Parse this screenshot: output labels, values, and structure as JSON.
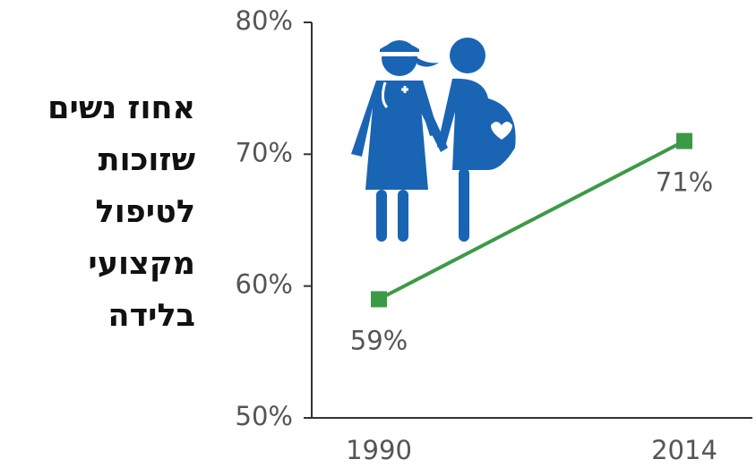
{
  "chart_data": {
    "type": "line",
    "title_lines": [
      "אחוז נשים",
      "שזוכות",
      "לטיפול",
      "מקצועי",
      "בלידה"
    ],
    "categories": [
      "1990",
      "2014"
    ],
    "series": [
      {
        "name": null,
        "color": "#3c9a47",
        "values": [
          59,
          71
        ],
        "value_labels": [
          "59%",
          "71%"
        ]
      }
    ],
    "ylim": [
      50,
      80
    ],
    "yticks": [
      {
        "value": 50,
        "label": "50%"
      },
      {
        "value": 60,
        "label": "60%"
      },
      {
        "value": 70,
        "label": "70%"
      },
      {
        "value": 80,
        "label": "80%"
      }
    ]
  }
}
